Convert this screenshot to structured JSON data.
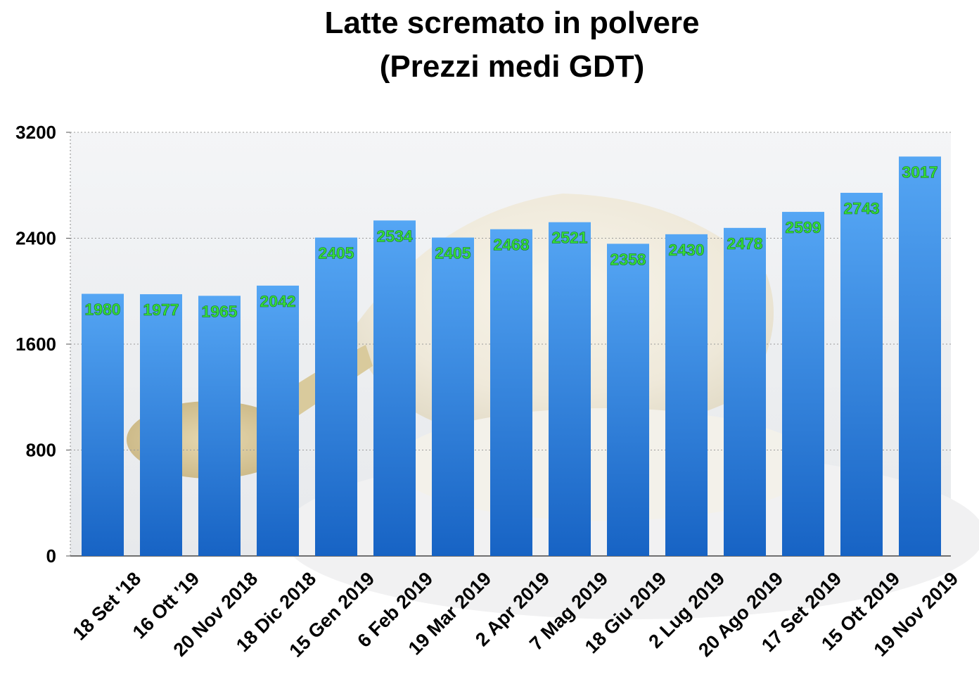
{
  "chart_data": {
    "type": "bar",
    "title_lines": [
      "Latte scremato in polvere",
      "(Prezzi medi GDT)"
    ],
    "categories": [
      "18 Set '18",
      "16 Ott '19",
      "20 Nov 2018",
      "18 Dic 2018",
      "15 Gen 2019",
      "6 Feb 2019",
      "19 Mar 2019",
      "2 Apr 2019",
      "7 Mag 2019",
      "18 Giu 2019",
      "2 Lug 2019",
      "20 Ago 2019",
      "17 Set 2019",
      "15 Ott 2019",
      "19 Nov 2019"
    ],
    "values": [
      1980,
      1977,
      1965,
      2042,
      2405,
      2534,
      2405,
      2468,
      2521,
      2358,
      2430,
      2478,
      2599,
      2743,
      3017
    ],
    "ylim": [
      0,
      3200
    ],
    "yticks": [
      0,
      800,
      1600,
      2400,
      3200
    ],
    "grid": true,
    "legend": "none",
    "bar_color_top": "#55a6f4",
    "bar_color_bottom": "#1763c4",
    "label_color": "#34e03a"
  }
}
